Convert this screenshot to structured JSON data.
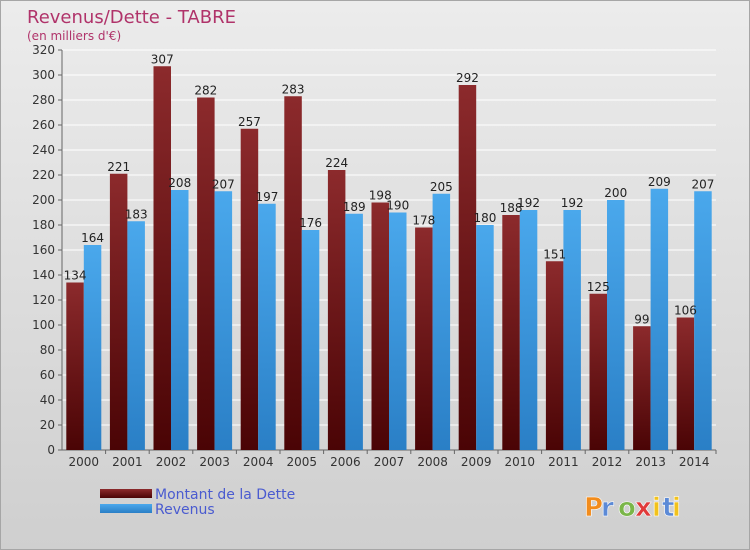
{
  "chart_data": {
    "type": "bar",
    "title": "Revenus/Dette - TABRE",
    "subtitle": "(en milliers d'€)",
    "categories": [
      "2000",
      "2001",
      "2002",
      "2003",
      "2004",
      "2005",
      "2006",
      "2007",
      "2008",
      "2009",
      "2010",
      "2011",
      "2012",
      "2013",
      "2014"
    ],
    "series": [
      {
        "name": "Montant de la Dette",
        "color": "#7a1416",
        "values": [
          134,
          221,
          307,
          282,
          257,
          283,
          224,
          198,
          178,
          292,
          188,
          151,
          125,
          99,
          106
        ]
      },
      {
        "name": "Revenus",
        "color": "#3d9be0",
        "values": [
          164,
          183,
          208,
          207,
          197,
          176,
          189,
          190,
          205,
          180,
          192,
          192,
          200,
          209,
          207
        ]
      }
    ],
    "ylim": [
      0,
      320
    ],
    "ytick_step": 20,
    "grid": true,
    "legend_position": "bottom-left"
  },
  "logo": {
    "text": "Proxiti",
    "colors": [
      "#f28c1c",
      "#5c8ad6",
      "#7ab648",
      "#e03a3a",
      "#f2c21c"
    ]
  }
}
